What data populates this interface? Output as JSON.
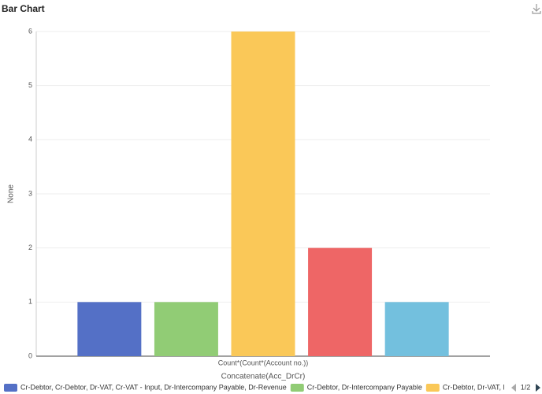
{
  "chart_data": {
    "type": "bar",
    "title": "Bar Chart",
    "categories": [
      "Count*(Count*(Account no.))"
    ],
    "xlabel": "Concatenate(Acc_DrCr)",
    "ylabel": "None",
    "series": [
      {
        "name": "Cr-Debtor, Cr-Debtor, Dr-VAT, Cr-VAT - Input, Dr-Intercompany Payable, Dr-Revenue",
        "color": "#5470c6",
        "values": [
          1
        ]
      },
      {
        "name": "Cr-Debtor, Dr-Intercompany Payable",
        "color": "#91cc75",
        "values": [
          1
        ]
      },
      {
        "name": "Cr-Debtor, Dr-VAT, Dr-Revenue",
        "color": "#fac858",
        "values": [
          6
        ]
      },
      {
        "name": null,
        "color": "#ee6666",
        "values": [
          2
        ]
      },
      {
        "name": null,
        "color": "#73c0de",
        "values": [
          1
        ]
      }
    ],
    "ylim": [
      0,
      6
    ],
    "yticks": [
      0,
      1,
      2,
      3,
      4,
      5,
      6
    ],
    "grid": true,
    "legend_page": "1/2"
  }
}
